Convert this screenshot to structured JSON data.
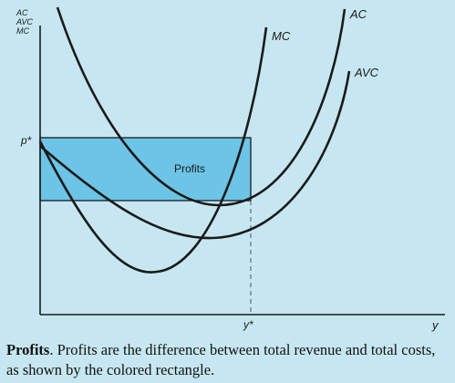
{
  "axes": {
    "y_label_lines": [
      "AC",
      "AVC",
      "MC"
    ],
    "x_label": "y",
    "price_label": "p*",
    "quantity_label": "y*"
  },
  "curves": {
    "ac_label": "AC",
    "mc_label": "MC",
    "avc_label": "AVC"
  },
  "region": {
    "label": "Profits"
  },
  "caption": {
    "title": "Profits",
    "text": ". Profits are the difference between total revenue and total costs, as shown by the colored rectangle."
  },
  "colors": {
    "background": "#c6e7f1",
    "profit_fill": "#6cc4e6",
    "curve_stroke": "#1a1a1a"
  }
}
